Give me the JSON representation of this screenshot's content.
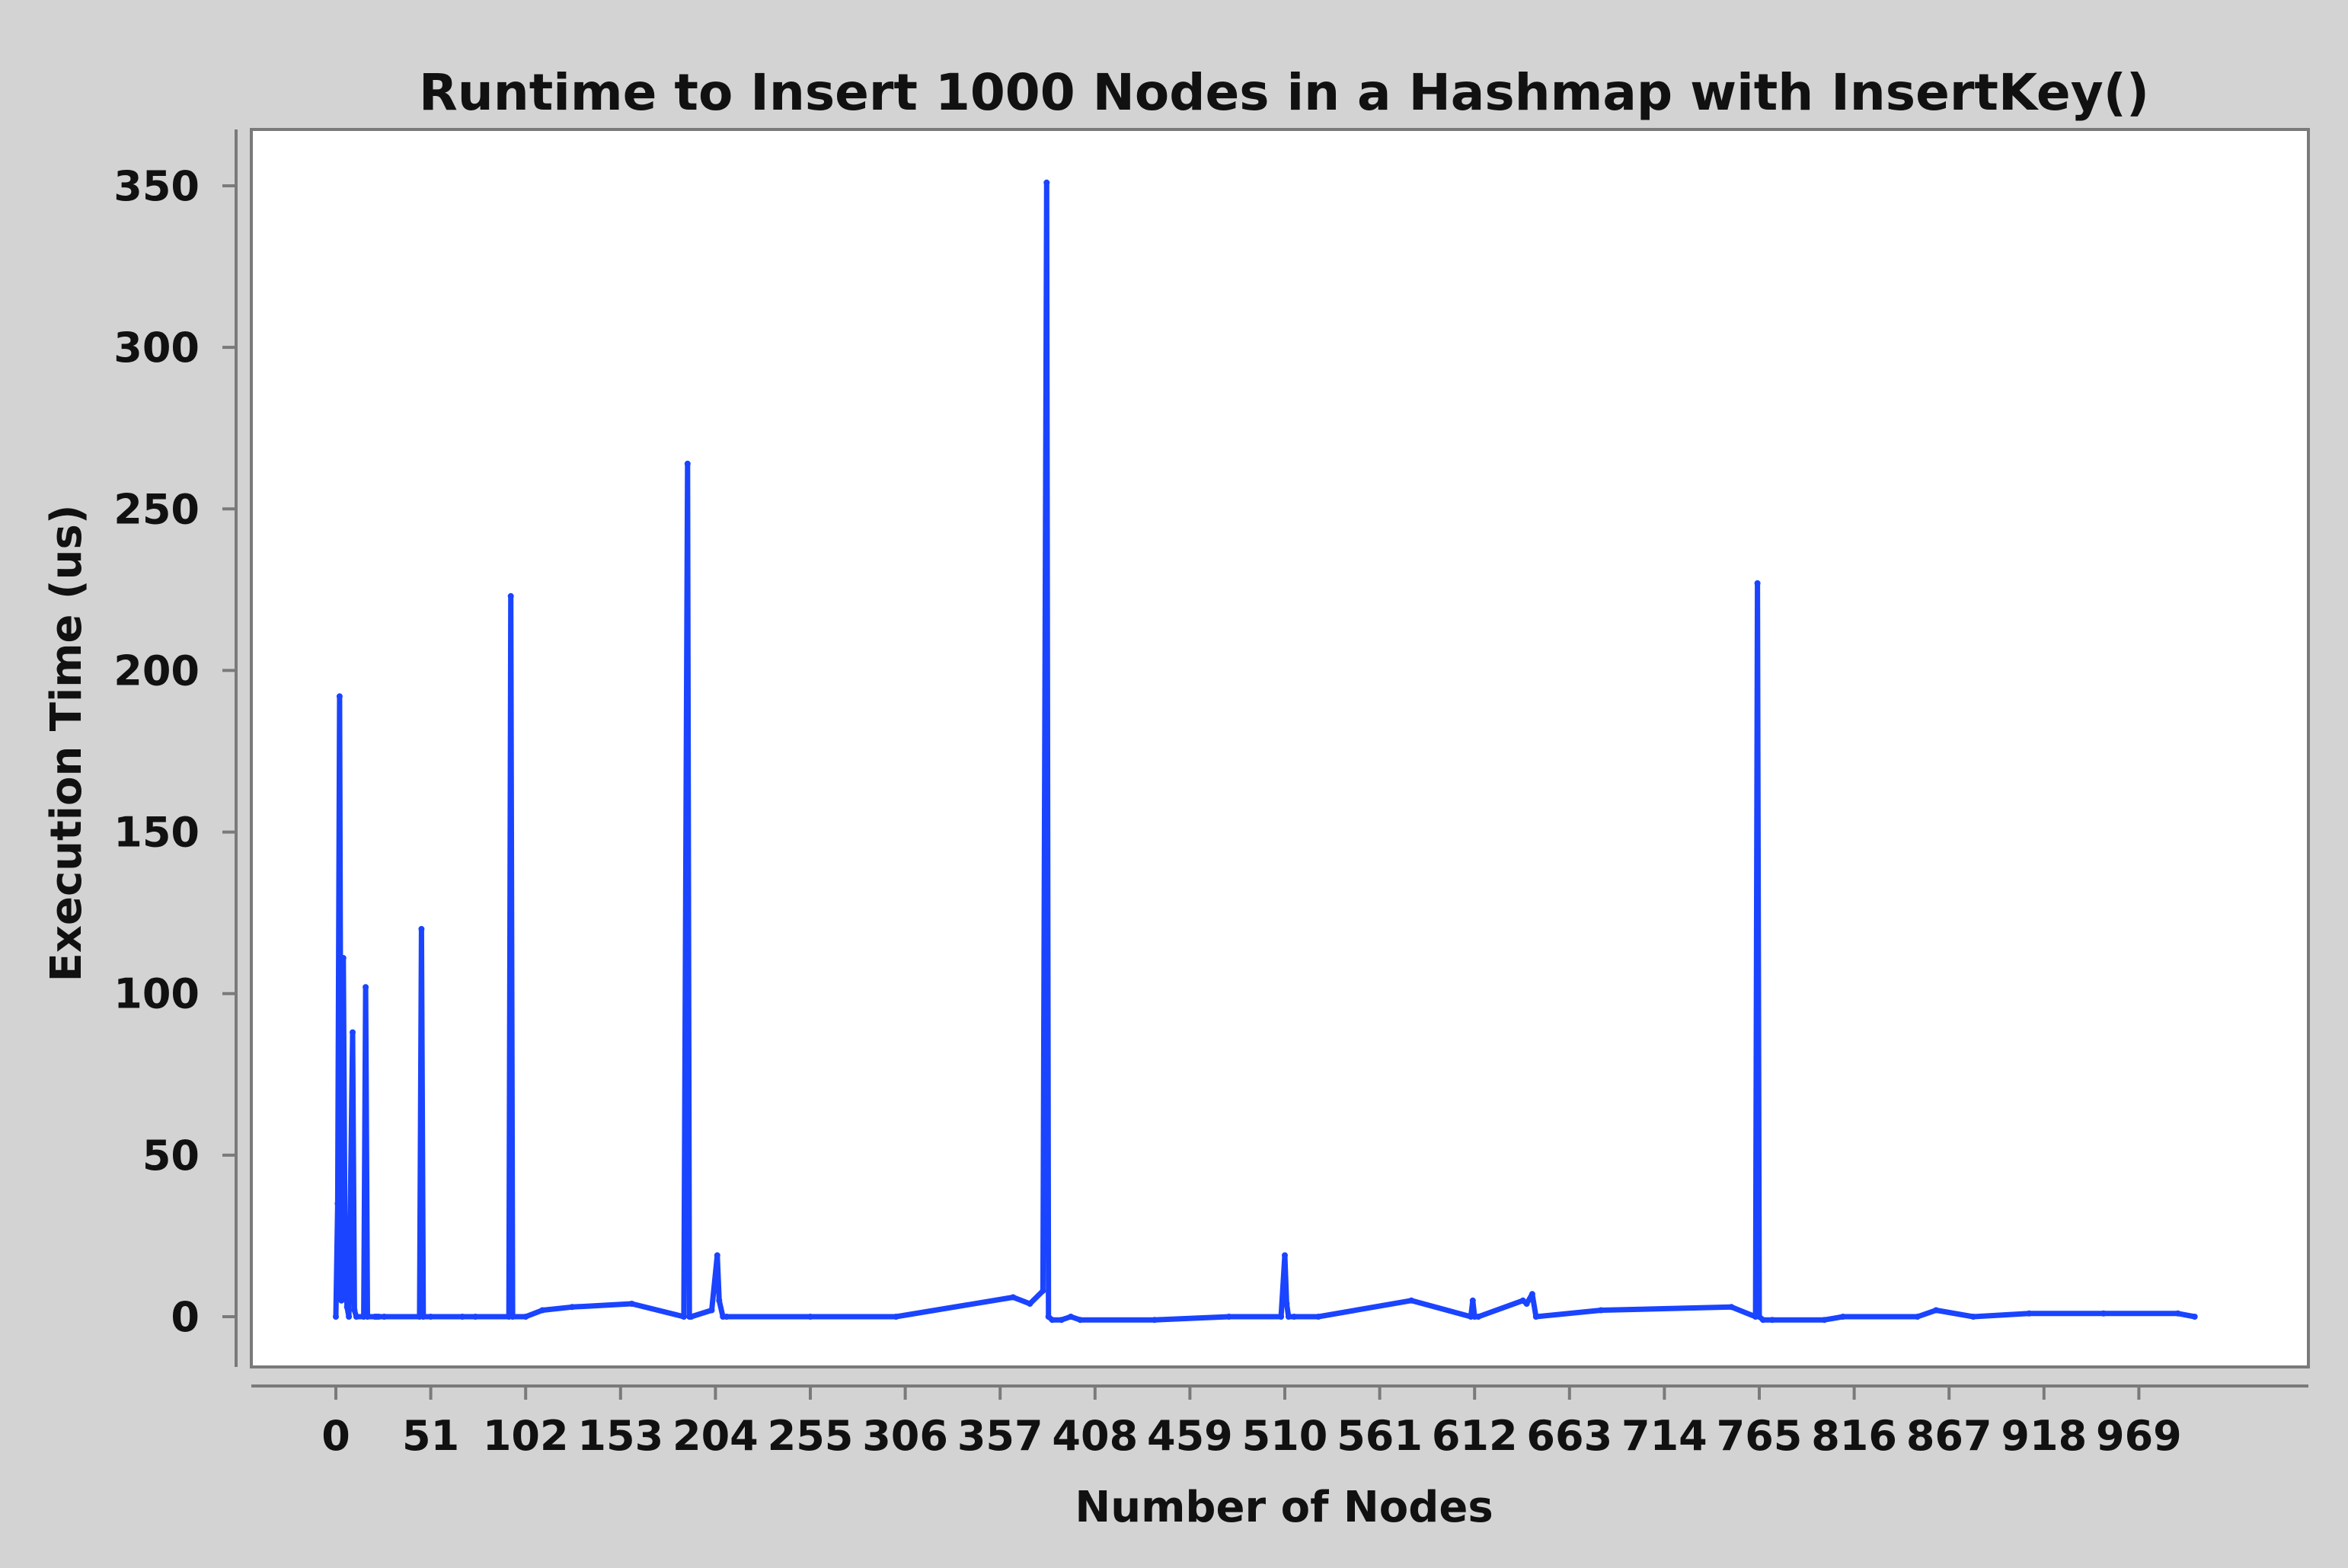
{
  "chart_data": {
    "type": "line",
    "title": "Runtime to Insert 1000 Nodes in a Hashmap with InsertKey()",
    "xlabel": "Number of Nodes",
    "ylabel": "Execution Time (us)",
    "xlim": [
      0,
      999
    ],
    "ylim": [
      -15,
      367
    ],
    "x_ticks": [
      0,
      51,
      102,
      153,
      204,
      255,
      306,
      357,
      408,
      459,
      510,
      561,
      612,
      663,
      714,
      765,
      816,
      867,
      918,
      969
    ],
    "x_tick_labels": [
      "0",
      "51",
      "102",
      "153",
      "204",
      "255",
      "306",
      "357",
      "408",
      "459",
      "510",
      "561",
      "612",
      "663",
      "714",
      "765",
      "816",
      "867",
      "918",
      "969"
    ],
    "y_ticks": [
      0,
      50,
      100,
      150,
      200,
      250,
      300,
      350
    ],
    "y_tick_labels": [
      "0",
      "50",
      "100",
      "150",
      "200",
      "250",
      "300",
      "350"
    ],
    "grid": true,
    "legend": "none",
    "colors": {
      "line": "#1a44ff",
      "plot_bg": "#ffffff",
      "page_bg": "#d3d3d3",
      "grid": "#c8c8c8"
    },
    "baseline": 0.5,
    "series": [
      {
        "x": [
          0,
          1,
          2,
          3,
          4,
          5,
          6,
          7,
          9,
          10,
          11,
          15,
          16,
          17,
          21,
          22,
          23,
          26,
          45,
          46,
          47,
          51,
          68,
          75,
          93,
          94,
          95,
          102,
          111,
          127,
          159,
          187,
          189,
          190,
          191,
          202,
          205,
          206,
          208,
          210,
          255,
          301,
          364,
          373,
          380,
          382,
          383,
          385,
          390,
          395,
          400,
          440,
          480,
          508,
          510,
          511,
          512,
          515,
          528,
          578,
          610,
          611,
          612,
          614,
          638,
          640,
          643,
          645,
          680,
          750,
          763,
          764,
          765,
          767,
          772,
          800,
          810,
          850,
          860,
          880,
          910,
          950,
          990,
          999
        ],
        "y": [
          0,
          35,
          192,
          5,
          111,
          15,
          3,
          0,
          88,
          2,
          0,
          0,
          102,
          0,
          0,
          0,
          0,
          0,
          0,
          120,
          0,
          0,
          0,
          0,
          0,
          223,
          0,
          0,
          2,
          3,
          4,
          0,
          264,
          0,
          0,
          2,
          19,
          5,
          0,
          0,
          0,
          0,
          6,
          4,
          8,
          351,
          0,
          -1,
          -1,
          0,
          -1,
          -1,
          0,
          0,
          19,
          4,
          0,
          0,
          0,
          5,
          0,
          5,
          0,
          0,
          5,
          4,
          7,
          0,
          2,
          3,
          0,
          227,
          0,
          -1,
          -1,
          -1,
          0,
          0,
          2,
          0,
          1,
          1,
          1,
          0
        ]
      }
    ]
  }
}
